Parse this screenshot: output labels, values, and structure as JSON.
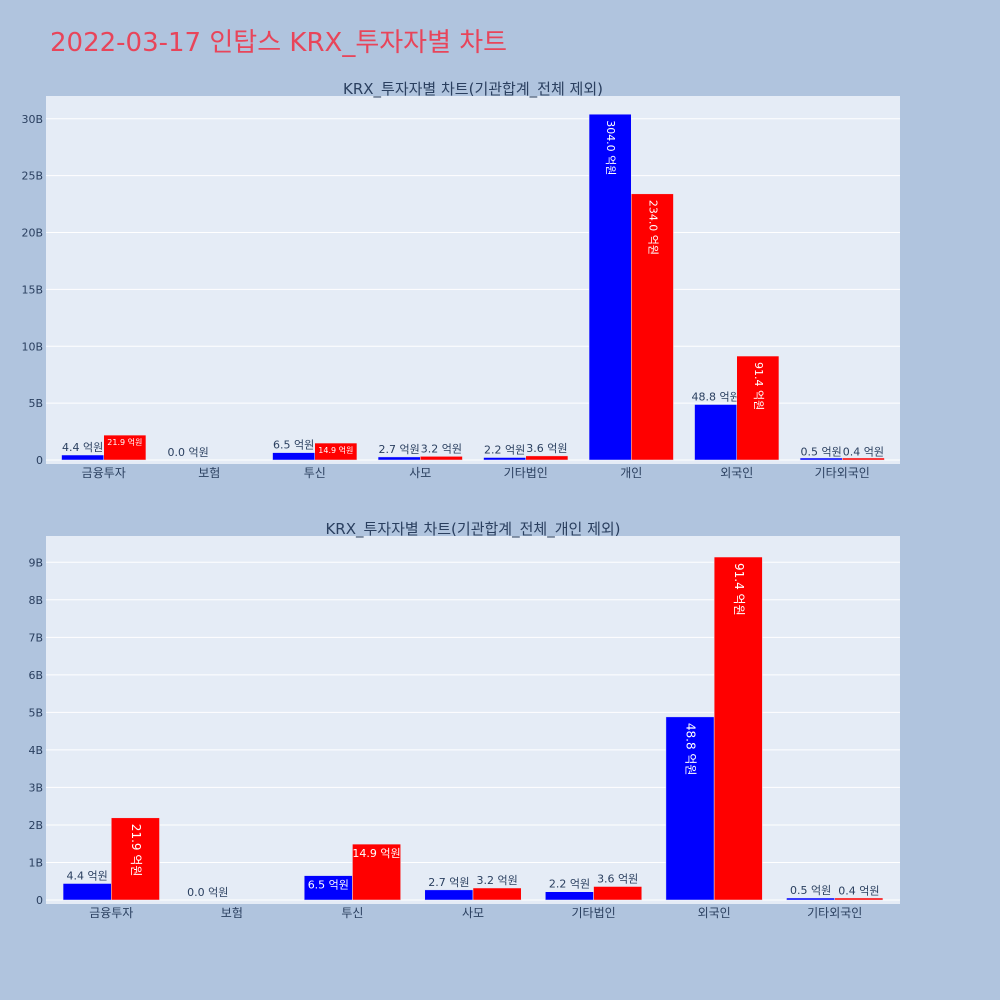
{
  "page_title": "2022-03-17 인탑스 KRX_투자자별 차트",
  "colors": {
    "buy": "#0000ff",
    "sell": "#ff0000",
    "plot_bg": "#e5ecf6",
    "page_bg": "#b0c4de",
    "title": "#e8455a"
  },
  "chart_data": [
    {
      "type": "bar",
      "title": "KRX_투자자별 차트(기관합계_전체 제외)",
      "categories": [
        "금융투자",
        "보험",
        "투신",
        "사모",
        "기타법인",
        "개인",
        "외국인",
        "기타외국인"
      ],
      "series": [
        {
          "color": "#0000ff",
          "values": [
            0.44,
            0.0,
            0.65,
            0.27,
            0.22,
            30.4,
            4.88,
            0.05
          ],
          "labels": [
            "4.4 억원",
            "0.0 억원",
            "6.5 억원",
            "2.7 억원",
            "2.2 억원",
            "304.0 억원",
            "48.8 억원",
            "0.5 억원"
          ]
        },
        {
          "color": "#ff0000",
          "values": [
            2.19,
            0.0,
            1.49,
            0.32,
            0.36,
            23.4,
            9.14,
            0.04
          ],
          "labels": [
            "21.9 억원",
            "",
            "14.9 억원",
            "3.2 억원",
            "3.6 억원",
            "234.0 억원",
            "91.4 억원",
            "0.4 억원"
          ]
        }
      ],
      "y_ticks": [
        "0",
        "5B",
        "10B",
        "15B",
        "20B",
        "25B",
        "30B"
      ],
      "y_tick_values": [
        0,
        5,
        10,
        15,
        20,
        25,
        30
      ],
      "ylim": [
        0,
        32
      ],
      "grid": true
    },
    {
      "type": "bar",
      "title": "KRX_투자자별 차트(기관합계_전체_개인 제외)",
      "categories": [
        "금융투자",
        "보험",
        "투신",
        "사모",
        "기타법인",
        "외국인",
        "기타외국인"
      ],
      "series": [
        {
          "color": "#0000ff",
          "values": [
            0.44,
            0.0,
            0.65,
            0.27,
            0.22,
            4.88,
            0.05
          ],
          "labels": [
            "4.4 억원",
            "0.0 억원",
            "6.5 억원",
            "2.7 억원",
            "2.2 억원",
            "48.8 억원",
            "0.5 억원"
          ]
        },
        {
          "color": "#ff0000",
          "values": [
            2.19,
            0.0,
            1.49,
            0.32,
            0.36,
            9.14,
            0.04
          ],
          "labels": [
            "21.9 억원",
            "",
            "14.9 억원",
            "3.2 억원",
            "3.6 억원",
            "91.4 억원",
            "0.4 억원"
          ]
        }
      ],
      "y_ticks": [
        "0",
        "1B",
        "2B",
        "3B",
        "4B",
        "5B",
        "6B",
        "7B",
        "8B",
        "9B"
      ],
      "y_tick_values": [
        0,
        1,
        2,
        3,
        4,
        5,
        6,
        7,
        8,
        9
      ],
      "ylim": [
        0,
        9.7
      ],
      "grid": true
    }
  ]
}
